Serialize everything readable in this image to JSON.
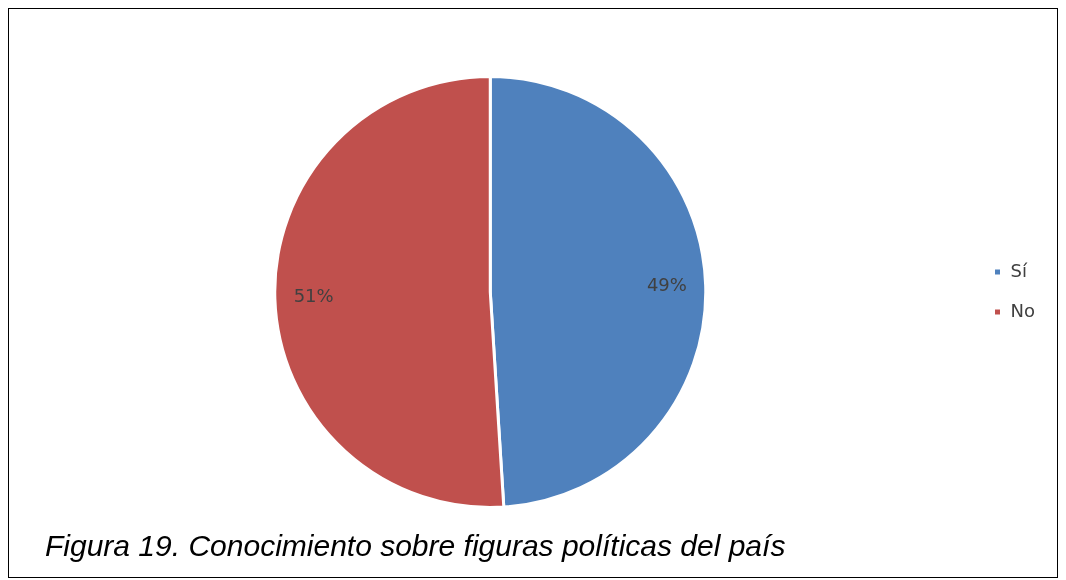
{
  "chart_data": {
    "type": "pie",
    "categories": [
      "Sí",
      "No"
    ],
    "values": [
      49,
      51
    ],
    "colors": [
      "#4f81bd",
      "#c0504d"
    ],
    "value_labels": [
      "49%",
      "51%"
    ],
    "legend": "right",
    "annotations": [
      "Figura 19. Conocimiento sobre figuras políticas del país"
    ]
  }
}
